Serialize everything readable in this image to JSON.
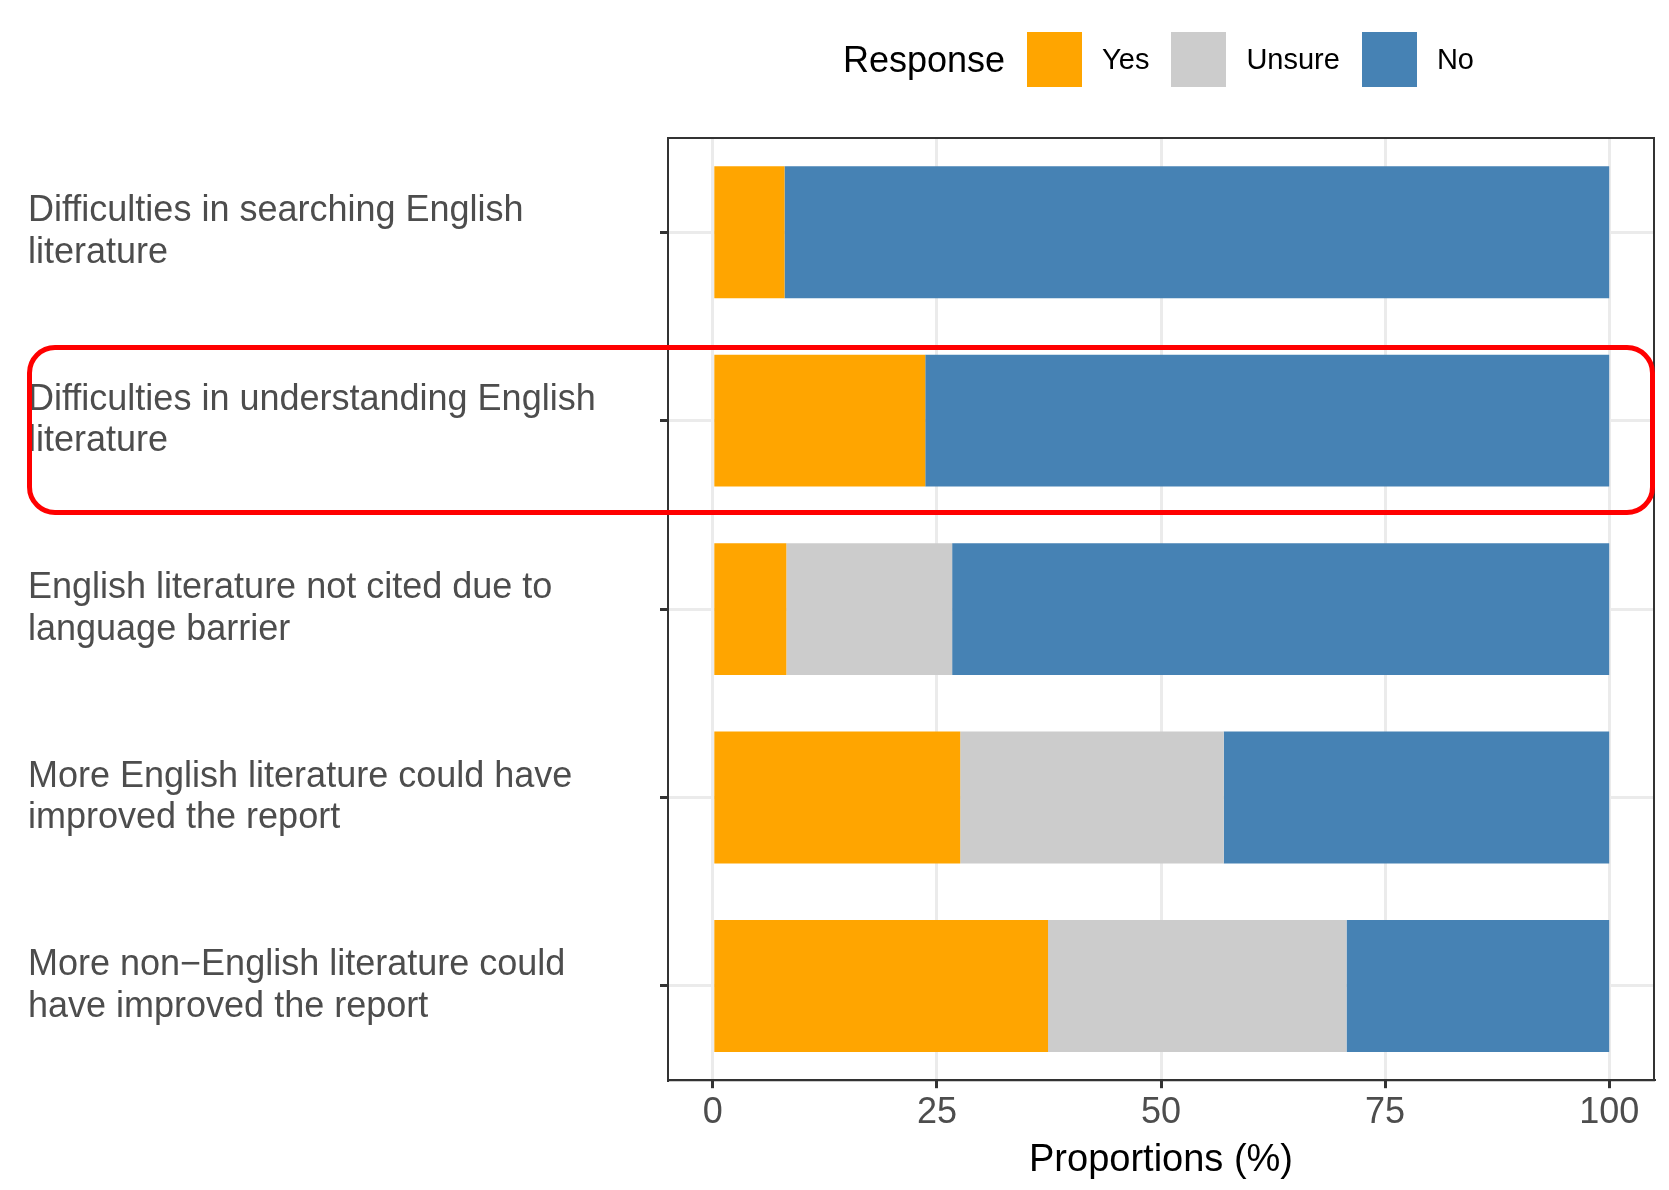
{
  "chart_data": {
    "type": "bar",
    "orientation": "horizontal",
    "stacked": true,
    "xlabel": "Proportions (%)",
    "legend_title": "Response",
    "legend": "top",
    "categories": [
      "Difficulties in searching English literature",
      "Difficulties in understanding English literature",
      "English literature not cited due to language barrier",
      "More English literature could have improved the report",
      "More non−English literature could have improved the report"
    ],
    "series": [
      {
        "name": "Yes",
        "color": "#ffa500",
        "values": [
          8.0,
          23.7,
          8.2,
          27.6,
          37.4
        ]
      },
      {
        "name": "Unsure",
        "color": "#cccccc",
        "values": [
          0,
          0,
          18.5,
          29.4,
          33.3
        ]
      },
      {
        "name": "No",
        "color": "#4682b4",
        "values": [
          92.0,
          76.3,
          73.3,
          43.0,
          29.3
        ]
      }
    ],
    "xlim": [
      -5,
      105
    ],
    "xticks": [
      0,
      25,
      50,
      75,
      100
    ],
    "grid": true
  }
}
